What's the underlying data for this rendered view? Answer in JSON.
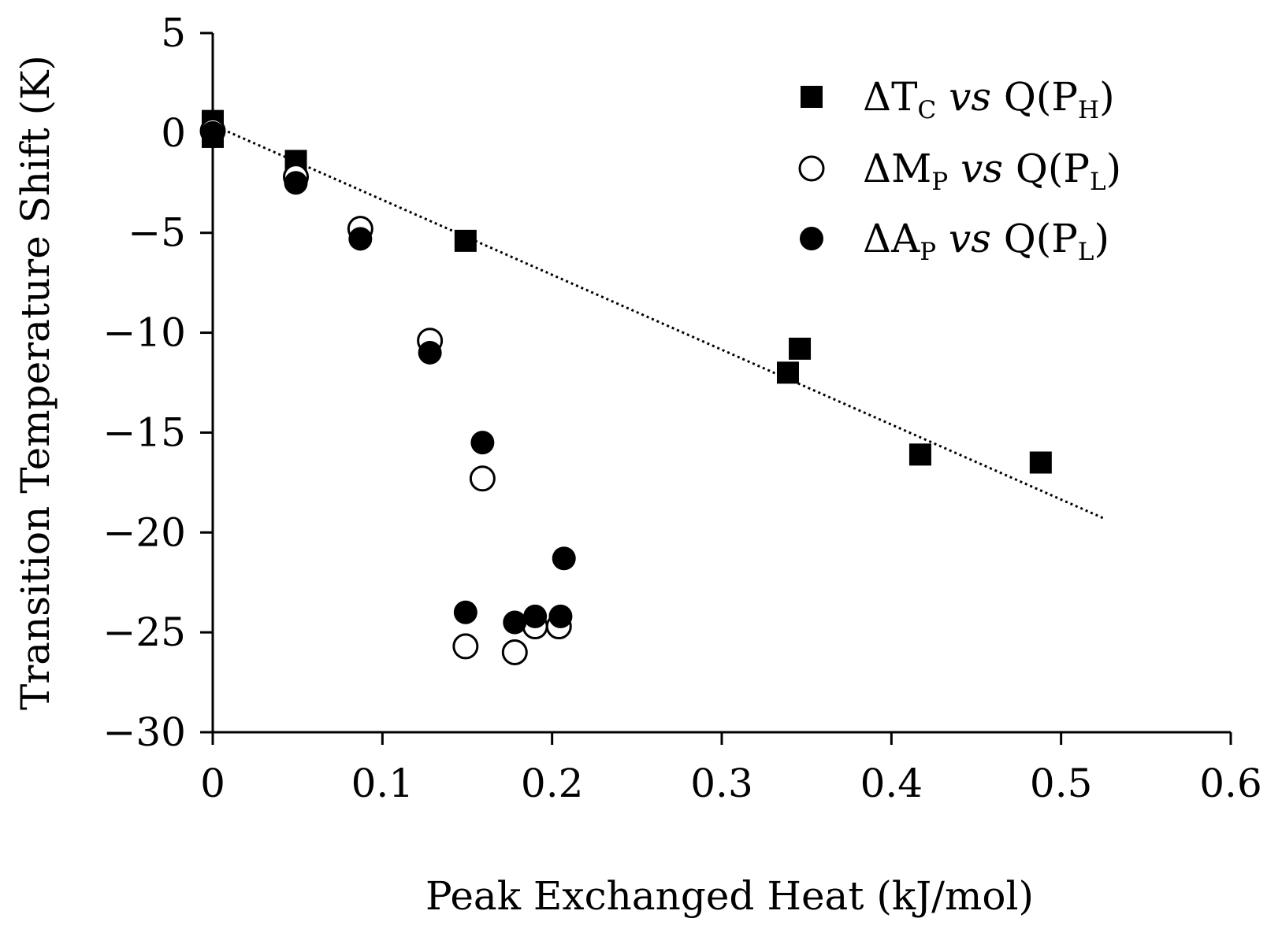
{
  "chart_data": {
    "type": "scatter",
    "title": "",
    "xlabel": "Peak Exchanged Heat (kJ/mol)",
    "ylabel": "Transition Temperature Shift (K)",
    "xlim": [
      0,
      0.6
    ],
    "ylim": [
      -30,
      5
    ],
    "xticks": [
      0,
      0.1,
      0.2,
      0.3,
      0.4,
      0.5,
      0.6
    ],
    "xtick_labels": [
      "0",
      "0.1",
      "0.2",
      "0.3",
      "0.4",
      "0.5",
      "0.6"
    ],
    "yticks": [
      5,
      0,
      -5,
      -10,
      -15,
      -20,
      -25,
      -30
    ],
    "ytick_labels": [
      "5",
      "0",
      "−5",
      "−10",
      "−15",
      "−20",
      "−25",
      "−30"
    ],
    "grid": false,
    "legend_position": "top-right",
    "series": [
      {
        "name": "ΔT_C vs Q(P_H)",
        "legend": {
          "delta": "ΔT",
          "sub1": "C",
          "vs": "vs",
          "q": "Q(P",
          "sub2": "H",
          "close": ")"
        },
        "marker": "square-filled",
        "x": [
          0.0,
          0.0,
          0.049,
          0.149,
          0.339,
          0.346,
          0.417,
          0.488
        ],
        "y": [
          0.6,
          -0.2,
          -1.4,
          -5.4,
          -12.0,
          -10.8,
          -16.1,
          -16.5
        ]
      },
      {
        "name": "ΔM_P vs Q(P_L)",
        "legend": {
          "delta": "ΔM",
          "sub1": "P",
          "vs": "vs",
          "q": "Q(P",
          "sub2": "L",
          "close": ")"
        },
        "marker": "circle-open",
        "x": [
          0.0,
          0.049,
          0.087,
          0.128,
          0.159,
          0.149,
          0.178,
          0.19,
          0.204
        ],
        "y": [
          0.1,
          -2.2,
          -4.8,
          -10.4,
          -17.3,
          -25.7,
          -26.0,
          -24.7,
          -24.7
        ]
      },
      {
        "name": "ΔA_P vs Q(P_L)",
        "legend": {
          "delta": "ΔA",
          "sub1": "P",
          "vs": "vs",
          "q": "Q(P",
          "sub2": "L",
          "close": ")"
        },
        "marker": "circle-filled",
        "x": [
          0.0,
          0.049,
          0.087,
          0.128,
          0.159,
          0.207,
          0.149,
          0.178,
          0.19,
          0.205
        ],
        "y": [
          0.0,
          -2.5,
          -5.3,
          -11.0,
          -15.5,
          -21.3,
          -24.0,
          -24.5,
          -24.2,
          -24.2
        ]
      }
    ],
    "trendline": {
      "style": "dotted",
      "fit_for": "ΔT_C vs Q(P_H)",
      "x_range": [
        0,
        0.525
      ],
      "slope": -37.5,
      "intercept": 0.4
    }
  }
}
